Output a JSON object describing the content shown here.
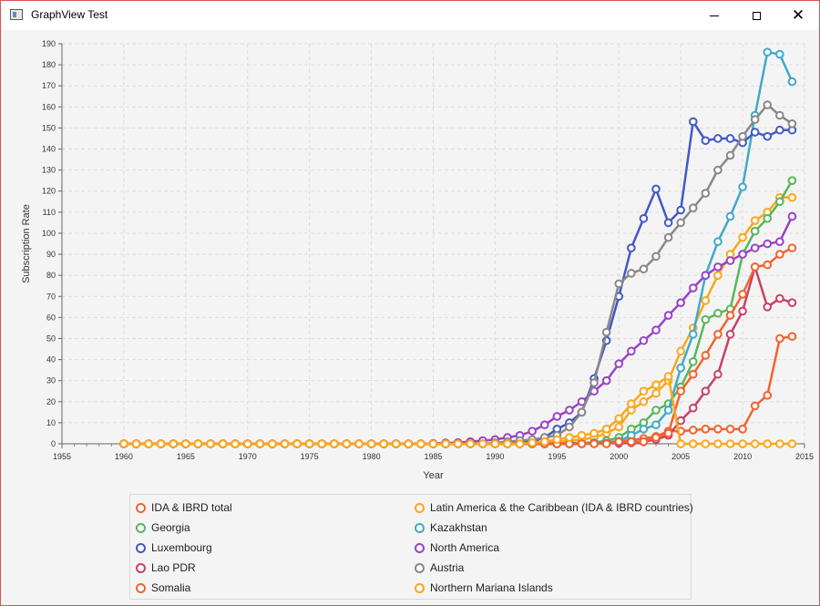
{
  "window": {
    "title": "GraphView Test",
    "minimize_icon": "minimize-icon",
    "maximize_icon": "maximize-icon",
    "close_icon": "close-icon",
    "close_glyph": "✕"
  },
  "chart_data": {
    "type": "line",
    "xlabel": "Year",
    "ylabel": "Subscription Rate",
    "xlim": [
      1955,
      2015
    ],
    "ylim": [
      0,
      190
    ],
    "xticks": [
      1955,
      1960,
      1965,
      1970,
      1975,
      1980,
      1985,
      1990,
      1995,
      2000,
      2005,
      2010,
      2015
    ],
    "yticks": [
      0,
      10,
      20,
      30,
      40,
      50,
      60,
      70,
      80,
      90,
      100,
      110,
      120,
      130,
      140,
      150,
      160,
      170,
      180,
      190
    ],
    "grid": true,
    "legend_position": "bottom",
    "zero_years": {
      "from": 1960,
      "to": 1989
    },
    "series": [
      {
        "name": "IDA & IBRD total",
        "color": "#f3622d",
        "values": [
          [
            1990,
            0
          ],
          [
            1991,
            0
          ],
          [
            1992,
            0
          ],
          [
            1993,
            0.1
          ],
          [
            1994,
            0.1
          ],
          [
            1995,
            0.2
          ],
          [
            1996,
            0.3
          ],
          [
            1997,
            0.4
          ],
          [
            1998,
            0.6
          ],
          [
            1999,
            0.8
          ],
          [
            2000,
            1.2
          ],
          [
            2001,
            1.8
          ],
          [
            2002,
            2.5
          ],
          [
            2003,
            3.5
          ],
          [
            2004,
            6
          ],
          [
            2005,
            6
          ],
          [
            2006,
            6.5
          ],
          [
            2007,
            7
          ],
          [
            2008,
            7
          ],
          [
            2009,
            7
          ],
          [
            2010,
            7
          ],
          [
            2011,
            18
          ],
          [
            2012,
            23
          ],
          [
            2013,
            50
          ],
          [
            2014,
            51
          ]
        ]
      },
      {
        "name": "Latin America & the Caribbean (IDA & IBRD countries)",
        "color": "#fba71b",
        "values": [
          [
            1990,
            0
          ],
          [
            1991,
            0.1
          ],
          [
            1992,
            0.2
          ],
          [
            1993,
            0.4
          ],
          [
            1994,
            0.6
          ],
          [
            1995,
            1
          ],
          [
            1996,
            1.5
          ],
          [
            1997,
            2
          ],
          [
            1998,
            3
          ],
          [
            1999,
            5
          ],
          [
            2000,
            8
          ],
          [
            2001,
            16
          ],
          [
            2002,
            20
          ],
          [
            2003,
            24
          ],
          [
            2004,
            30
          ],
          [
            2005,
            44
          ],
          [
            2006,
            55
          ],
          [
            2007,
            68
          ],
          [
            2008,
            80
          ],
          [
            2009,
            90
          ],
          [
            2010,
            98
          ],
          [
            2011,
            106
          ],
          [
            2012,
            110
          ],
          [
            2013,
            117
          ],
          [
            2014,
            117
          ]
        ]
      },
      {
        "name": "Georgia",
        "color": "#57b757",
        "values": [
          [
            1990,
            0
          ],
          [
            1991,
            0
          ],
          [
            1992,
            0
          ],
          [
            1993,
            0
          ],
          [
            1994,
            0
          ],
          [
            1995,
            0
          ],
          [
            1996,
            0
          ],
          [
            1997,
            0.2
          ],
          [
            1998,
            0.6
          ],
          [
            1999,
            1.5
          ],
          [
            2000,
            3
          ],
          [
            2001,
            7
          ],
          [
            2002,
            10
          ],
          [
            2003,
            16
          ],
          [
            2004,
            19
          ],
          [
            2005,
            27
          ],
          [
            2006,
            39
          ],
          [
            2007,
            59
          ],
          [
            2008,
            62
          ],
          [
            2009,
            64
          ],
          [
            2010,
            90
          ],
          [
            2011,
            101
          ],
          [
            2012,
            107
          ],
          [
            2013,
            115
          ],
          [
            2014,
            125
          ]
        ]
      },
      {
        "name": "Kazakhstan",
        "color": "#41a9c9",
        "values": [
          [
            1990,
            0
          ],
          [
            1991,
            0
          ],
          [
            1992,
            0
          ],
          [
            1993,
            0
          ],
          [
            1994,
            0
          ],
          [
            1995,
            0
          ],
          [
            1996,
            0
          ],
          [
            1997,
            0
          ],
          [
            1998,
            0.2
          ],
          [
            1999,
            0.3
          ],
          [
            2000,
            1.3
          ],
          [
            2001,
            4
          ],
          [
            2002,
            7
          ],
          [
            2003,
            9
          ],
          [
            2004,
            16
          ],
          [
            2005,
            36
          ],
          [
            2006,
            52
          ],
          [
            2007,
            80
          ],
          [
            2008,
            96
          ],
          [
            2009,
            108
          ],
          [
            2010,
            122
          ],
          [
            2011,
            156
          ],
          [
            2012,
            186
          ],
          [
            2013,
            185
          ],
          [
            2014,
            172
          ]
        ]
      },
      {
        "name": "Luxembourg",
        "color": "#4258c9",
        "values": [
          [
            1990,
            0.1
          ],
          [
            1991,
            0.2
          ],
          [
            1992,
            0.5
          ],
          [
            1993,
            1
          ],
          [
            1994,
            3
          ],
          [
            1995,
            7
          ],
          [
            1996,
            10
          ],
          [
            1997,
            15
          ],
          [
            1998,
            31
          ],
          [
            1999,
            49
          ],
          [
            2000,
            70
          ],
          [
            2001,
            93
          ],
          [
            2002,
            107
          ],
          [
            2003,
            121
          ],
          [
            2004,
            105
          ],
          [
            2005,
            111
          ],
          [
            2006,
            153
          ],
          [
            2007,
            144
          ],
          [
            2008,
            145
          ],
          [
            2009,
            145
          ],
          [
            2010,
            143
          ],
          [
            2011,
            148
          ],
          [
            2012,
            146
          ],
          [
            2013,
            149
          ],
          [
            2014,
            149
          ]
        ]
      },
      {
        "name": "North America",
        "color": "#9a42c8",
        "values": [
          [
            1985,
            0.2
          ],
          [
            1986,
            0.4
          ],
          [
            1987,
            0.6
          ],
          [
            1988,
            1
          ],
          [
            1989,
            1.5
          ],
          [
            1990,
            2
          ],
          [
            1991,
            3
          ],
          [
            1992,
            4
          ],
          [
            1993,
            6
          ],
          [
            1994,
            9
          ],
          [
            1995,
            13
          ],
          [
            1996,
            16
          ],
          [
            1997,
            20
          ],
          [
            1998,
            25
          ],
          [
            1999,
            30
          ],
          [
            2000,
            38
          ],
          [
            2001,
            44
          ],
          [
            2002,
            49
          ],
          [
            2003,
            54
          ],
          [
            2004,
            61
          ],
          [
            2005,
            67
          ],
          [
            2006,
            74
          ],
          [
            2007,
            80
          ],
          [
            2008,
            84
          ],
          [
            2009,
            87
          ],
          [
            2010,
            90
          ],
          [
            2011,
            93
          ],
          [
            2012,
            95
          ],
          [
            2013,
            96
          ],
          [
            2014,
            108
          ]
        ]
      },
      {
        "name": "Lao PDR",
        "color": "#c84164",
        "values": [
          [
            1990,
            0
          ],
          [
            1991,
            0
          ],
          [
            1992,
            0
          ],
          [
            1993,
            0
          ],
          [
            1994,
            0
          ],
          [
            1995,
            0
          ],
          [
            1996,
            0
          ],
          [
            1997,
            0
          ],
          [
            1998,
            0.1
          ],
          [
            1999,
            0.2
          ],
          [
            2000,
            0.3
          ],
          [
            2001,
            0.5
          ],
          [
            2002,
            1
          ],
          [
            2003,
            2
          ],
          [
            2004,
            4
          ],
          [
            2005,
            11
          ],
          [
            2006,
            17
          ],
          [
            2007,
            25
          ],
          [
            2008,
            33
          ],
          [
            2009,
            52
          ],
          [
            2010,
            63
          ],
          [
            2011,
            84
          ],
          [
            2012,
            65
          ],
          [
            2013,
            69
          ],
          [
            2014,
            67
          ]
        ]
      },
      {
        "name": "Austria",
        "color": "#888888",
        "values": [
          [
            1990,
            0.5
          ],
          [
            1991,
            1
          ],
          [
            1992,
            1.5
          ],
          [
            1993,
            2
          ],
          [
            1994,
            3
          ],
          [
            1995,
            4
          ],
          [
            1996,
            8
          ],
          [
            1997,
            15
          ],
          [
            1998,
            29
          ],
          [
            1999,
            53
          ],
          [
            2000,
            76
          ],
          [
            2001,
            81
          ],
          [
            2002,
            83
          ],
          [
            2003,
            89
          ],
          [
            2004,
            98
          ],
          [
            2005,
            105
          ],
          [
            2006,
            112
          ],
          [
            2007,
            119
          ],
          [
            2008,
            130
          ],
          [
            2009,
            137
          ],
          [
            2010,
            146
          ],
          [
            2011,
            154
          ],
          [
            2012,
            161
          ],
          [
            2013,
            156
          ],
          [
            2014,
            152
          ]
        ]
      },
      {
        "name": "Somalia",
        "color": "#f3622d",
        "values": [
          [
            1990,
            0
          ],
          [
            1991,
            0
          ],
          [
            1992,
            0
          ],
          [
            1993,
            0
          ],
          [
            1994,
            0
          ],
          [
            1995,
            0
          ],
          [
            1996,
            0
          ],
          [
            1997,
            0
          ],
          [
            1998,
            0
          ],
          [
            1999,
            0
          ],
          [
            2000,
            1
          ],
          [
            2001,
            1
          ],
          [
            2002,
            1
          ],
          [
            2003,
            3
          ],
          [
            2004,
            5
          ],
          [
            2005,
            25
          ],
          [
            2006,
            33
          ],
          [
            2007,
            42
          ],
          [
            2008,
            52
          ],
          [
            2009,
            61
          ],
          [
            2010,
            71
          ],
          [
            2011,
            84
          ],
          [
            2012,
            85
          ],
          [
            2013,
            90
          ],
          [
            2014,
            93
          ]
        ]
      },
      {
        "name": "Northern Mariana Islands",
        "color": "#fba71b",
        "values": [
          [
            1990,
            0
          ],
          [
            1991,
            0
          ],
          [
            1992,
            0
          ],
          [
            1993,
            0.5
          ],
          [
            1994,
            1
          ],
          [
            1995,
            2
          ],
          [
            1996,
            3
          ],
          [
            1997,
            4
          ],
          [
            1998,
            5
          ],
          [
            1999,
            7
          ],
          [
            2000,
            12
          ],
          [
            2001,
            19
          ],
          [
            2002,
            25
          ],
          [
            2003,
            28
          ],
          [
            2004,
            32
          ],
          [
            2005,
            0
          ],
          [
            2006,
            0
          ],
          [
            2007,
            0
          ],
          [
            2008,
            0
          ],
          [
            2009,
            0
          ],
          [
            2010,
            0
          ],
          [
            2011,
            0
          ],
          [
            2012,
            0
          ],
          [
            2013,
            0
          ],
          [
            2014,
            0
          ]
        ]
      }
    ]
  },
  "legend": {
    "items": [
      {
        "label": "IDA & IBRD total",
        "color": "#f3622d"
      },
      {
        "label": "Latin America & the Caribbean (IDA & IBRD countries)",
        "color": "#fba71b"
      },
      {
        "label": "Georgia",
        "color": "#57b757"
      },
      {
        "label": "Kazakhstan",
        "color": "#41a9c9"
      },
      {
        "label": "Luxembourg",
        "color": "#4258c9"
      },
      {
        "label": "North America",
        "color": "#9a42c8"
      },
      {
        "label": "Lao PDR",
        "color": "#c84164"
      },
      {
        "label": "Austria",
        "color": "#888888"
      },
      {
        "label": "Somalia",
        "color": "#f3622d"
      },
      {
        "label": "Northern Mariana Islands",
        "color": "#fba71b"
      }
    ]
  }
}
